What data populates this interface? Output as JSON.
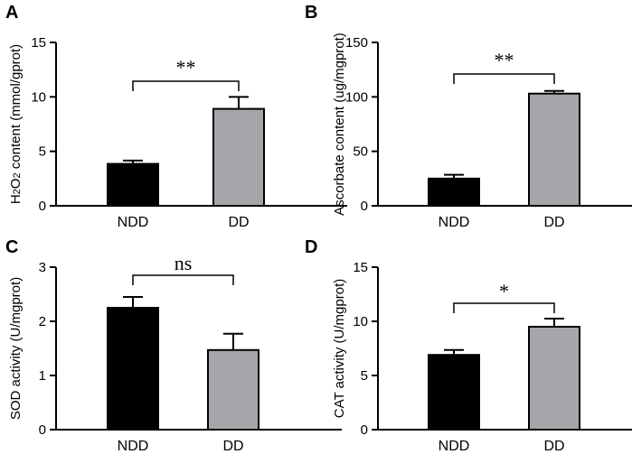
{
  "colors": {
    "ndd": "#000000",
    "dd": "#a6a6aa",
    "axis": "#000000"
  },
  "chart_data": [
    {
      "panel": "A",
      "type": "bar",
      "categories": [
        "NDD",
        "DD"
      ],
      "values": [
        3.85,
        8.9
      ],
      "errors": [
        0.3,
        1.1
      ],
      "ylabel_pre": "H",
      "ylabel_sub1": "2",
      "ylabel_mid": "O",
      "ylabel_sub2": "2",
      "ylabel_post": " content (mmol/gprot)",
      "ylim": [
        0,
        15
      ],
      "yticks": [
        "0",
        "5",
        "10",
        "15"
      ],
      "sig": "**"
    },
    {
      "panel": "B",
      "type": "bar",
      "categories": [
        "NDD",
        "DD"
      ],
      "values": [
        25,
        103
      ],
      "errors": [
        3.5,
        2.5
      ],
      "ylabel": "Ascorbate content (ug/mgprot)",
      "ylim": [
        0,
        150
      ],
      "yticks": [
        "0",
        "50",
        "100",
        "150"
      ],
      "sig": "**"
    },
    {
      "panel": "C",
      "type": "bar",
      "categories": [
        "NDD",
        "DD"
      ],
      "values": [
        2.25,
        1.47
      ],
      "errors": [
        0.2,
        0.3
      ],
      "ylabel": "SOD activity (U/mgprot)",
      "ylim": [
        0,
        3
      ],
      "yticks": [
        "0",
        "1",
        "2",
        "3"
      ],
      "sig": "ns"
    },
    {
      "panel": "D",
      "type": "bar",
      "categories": [
        "NDD",
        "DD"
      ],
      "values": [
        6.9,
        9.5
      ],
      "errors": [
        0.45,
        0.75
      ],
      "ylabel": "CAT activity (U/mgprot)",
      "ylim": [
        0,
        15
      ],
      "yticks": [
        "0",
        "5",
        "10",
        "15"
      ],
      "sig": "*"
    }
  ]
}
